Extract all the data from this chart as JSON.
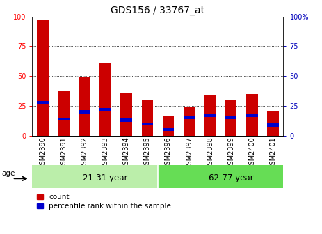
{
  "title": "GDS156 / 33767_at",
  "samples": [
    "GSM2390",
    "GSM2391",
    "GSM2392",
    "GSM2393",
    "GSM2394",
    "GSM2395",
    "GSM2396",
    "GSM2397",
    "GSM2398",
    "GSM2399",
    "GSM2400",
    "GSM2401"
  ],
  "red_values": [
    97,
    38,
    49,
    61,
    36,
    30,
    16,
    24,
    34,
    30,
    35,
    21
  ],
  "blue_values": [
    28,
    14,
    20,
    22,
    13,
    10,
    5,
    15,
    17,
    15,
    17,
    9
  ],
  "groups": [
    {
      "label": "21-31 year",
      "start": 0,
      "end": 6,
      "color": "#bbeeaa"
    },
    {
      "label": "62-77 year",
      "start": 6,
      "end": 12,
      "color": "#66dd55"
    }
  ],
  "ylim": [
    0,
    100
  ],
  "yticks": [
    0,
    25,
    50,
    75,
    100
  ],
  "red_color": "#cc0000",
  "blue_color": "#0000cc",
  "bar_width": 0.55,
  "title_fontsize": 10,
  "tick_fontsize": 7,
  "group_label_fontsize": 8.5,
  "legend_fontsize": 7.5,
  "right_ytick_color": "#0000bb"
}
